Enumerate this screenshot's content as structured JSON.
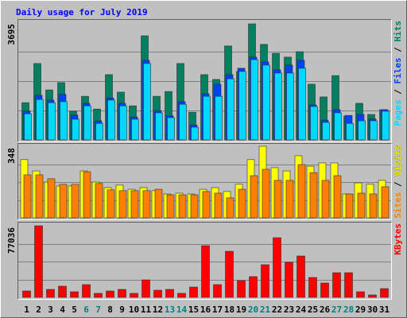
{
  "title": "Daily usage for July 2019",
  "chart_data": [
    {
      "type": "bar",
      "ylim": [
        0,
        3695
      ],
      "yticks": [
        3695
      ],
      "legend_separator": " / ",
      "series": [
        {
          "name": "Hits",
          "color": "#008060",
          "values": [
            1170,
            2400,
            1570,
            1800,
            900,
            1370,
            970,
            2050,
            1500,
            1070,
            3270,
            1370,
            1520,
            2400,
            870,
            2050,
            1900,
            2950,
            2150,
            3645,
            3000,
            2720,
            2600,
            2770,
            1750,
            1350,
            2020,
            750,
            1150,
            800,
            950
          ]
        },
        {
          "name": "Files",
          "color": "#0040ff",
          "values": [
            900,
            1400,
            1250,
            1430,
            780,
            1150,
            600,
            1320,
            1150,
            720,
            2500,
            920,
            760,
            1200,
            470,
            1450,
            1750,
            2050,
            2250,
            2600,
            2450,
            2200,
            2350,
            2500,
            1100,
            620,
            950,
            770,
            800,
            660,
            950
          ]
        },
        {
          "name": "Pages",
          "color": "#00d8ff",
          "values": [
            820,
            1270,
            1170,
            1200,
            650,
            1070,
            520,
            1250,
            1070,
            650,
            2400,
            850,
            700,
            1120,
            400,
            1370,
            1370,
            1920,
            2150,
            2520,
            2350,
            2100,
            2100,
            2250,
            1050,
            550,
            850,
            520,
            600,
            600,
            900
          ]
        }
      ]
    },
    {
      "type": "bar",
      "ylim": [
        0,
        348
      ],
      "yticks": [
        348
      ],
      "legend_separator": " / ",
      "series": [
        {
          "name": "Visits",
          "color": "#ffff00",
          "values": [
            283,
            228,
            174,
            155,
            155,
            228,
            174,
            147,
            159,
            139,
            147,
            132,
            116,
            120,
            116,
            139,
            147,
            128,
            163,
            283,
            348,
            244,
            228,
            302,
            251,
            267,
            267,
            116,
            170,
            163,
            182
          ]
        },
        {
          "name": "Sites",
          "color": "#ff8000",
          "values": [
            209,
            209,
            190,
            163,
            163,
            224,
            167,
            136,
            132,
            132,
            132,
            139,
            112,
            112,
            112,
            128,
            120,
            97,
            139,
            205,
            236,
            182,
            182,
            259,
            220,
            182,
            205,
            116,
            120,
            116,
            151
          ]
        }
      ]
    },
    {
      "type": "bar",
      "ylim": [
        0,
        77036
      ],
      "yticks": [
        77036
      ],
      "categories": [
        "1",
        "2",
        "3",
        "4",
        "5",
        "6",
        "7",
        "8",
        "9",
        "10",
        "11",
        "12",
        "13",
        "14",
        "15",
        "16",
        "17",
        "18",
        "19",
        "20",
        "21",
        "22",
        "23",
        "24",
        "25",
        "26",
        "27",
        "28",
        "29",
        "30",
        "31"
      ],
      "category_label_colors": [
        "#000000",
        "#000000",
        "#000000",
        "#000000",
        "#000000",
        "#008080",
        "#008080",
        "#000000",
        "#000000",
        "#000000",
        "#000000",
        "#000000",
        "#008080",
        "#008080",
        "#000000",
        "#000000",
        "#000000",
        "#000000",
        "#000000",
        "#008080",
        "#008080",
        "#000000",
        "#000000",
        "#000000",
        "#000000",
        "#000000",
        "#008080",
        "#008080",
        "#000000",
        "#000000",
        "#000000"
      ],
      "series": [
        {
          "name": "KBytes",
          "color": "#ff0000",
          "values": [
            6850,
            77036,
            8560,
            12000,
            6000,
            13700,
            4300,
            6850,
            8560,
            4300,
            18800,
            7700,
            8560,
            4300,
            11100,
            55600,
            13700,
            49600,
            18000,
            22300,
            35100,
            64200,
            37700,
            44500,
            21400,
            15400,
            26500,
            26500,
            6000,
            2600,
            9400
          ]
        }
      ]
    }
  ]
}
